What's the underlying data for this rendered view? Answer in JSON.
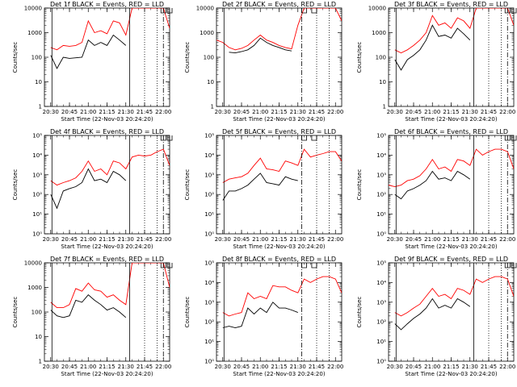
{
  "chart_data": [
    {
      "type": "line",
      "title": "Det 1f BLACK = Events, RED = LLD",
      "xlabel": "Start Time (22-Nov-03 20:24:20)",
      "ylabel": "Counts/sec",
      "yscale": "log",
      "ylim": [
        1,
        10000
      ],
      "xlim": [
        "20:25",
        "22:05"
      ],
      "ytick_labels": [
        "1",
        "10",
        "100",
        "1000",
        "10000"
      ],
      "xtick_labels": [
        "20:30",
        "20:45",
        "21:00",
        "21:15",
        "21:30",
        "21:45",
        "22:00"
      ],
      "x": [
        "20:25",
        "20:30",
        "20:35",
        "20:40",
        "20:45",
        "20:50",
        "20:55",
        "21:00",
        "21:05",
        "21:10",
        "21:15",
        "21:20",
        "21:25",
        "21:30",
        "21:35",
        "21:40",
        "21:45",
        "21:50",
        "21:55",
        "22:00",
        "22:05"
      ],
      "series": [
        {
          "name": "",
          "color": "#000000",
          "values": [
            null,
            120,
            35,
            100,
            90,
            95,
            100,
            500,
            300,
            400,
            300,
            800,
            500,
            300,
            null,
            null,
            null,
            null,
            null,
            null,
            null
          ]
        },
        {
          "name": "",
          "color": "#ff0000",
          "values": [
            null,
            250,
            200,
            300,
            280,
            300,
            400,
            3000,
            1000,
            1200,
            900,
            3000,
            2500,
            800,
            10000,
            10000,
            10000,
            10000,
            10000,
            10000,
            1500
          ]
        }
      ],
      "markers": {
        "solid": [
          "20:31",
          "21:33"
        ],
        "dotted": [
          "21:45",
          "21:55"
        ],
        "dashed": [
          "22:00"
        ],
        "flags": [
          "22:00",
          "22:05"
        ]
      }
    },
    {
      "type": "line",
      "title": "Det 2f BLACK = Events, RED = LLD",
      "xlabel": "Start Time (22-Nov-03 20:24:20)",
      "ylabel": "Counts/sec",
      "yscale": "log",
      "ylim": [
        1,
        10000
      ],
      "xlim": [
        "20:25",
        "22:05"
      ],
      "ytick_labels": [
        "1",
        "10",
        "100",
        "1000",
        "10000"
      ],
      "xtick_labels": [
        "20:30",
        "20:45",
        "21:00",
        "21:15",
        "21:30",
        "21:45",
        "22:00"
      ],
      "x": [
        "20:25",
        "20:30",
        "20:35",
        "20:40",
        "20:45",
        "20:50",
        "20:55",
        "21:00",
        "21:05",
        "21:10",
        "21:15",
        "21:20",
        "21:25",
        "21:30",
        "21:35",
        "21:40",
        "21:45",
        "21:50",
        "21:55",
        "22:00",
        "22:05"
      ],
      "series": [
        {
          "name": "",
          "color": "#000000",
          "values": [
            null,
            null,
            160,
            150,
            170,
            200,
            300,
            600,
            400,
            300,
            250,
            200,
            180,
            null,
            null,
            null,
            null,
            null,
            null,
            null,
            null
          ]
        },
        {
          "name": "",
          "color": "#ff0000",
          "values": [
            500,
            400,
            250,
            200,
            230,
            300,
            500,
            800,
            500,
            400,
            300,
            250,
            220,
            2000,
            10000,
            10000,
            10000,
            10000,
            10000,
            10000,
            3000
          ]
        }
      ],
      "markers": {
        "solid": [
          "20:31"
        ],
        "dotted": [
          "21:45",
          "21:55"
        ],
        "dashed": [
          "21:33"
        ],
        "flags": [
          "21:35",
          "21:43"
        ]
      }
    },
    {
      "type": "line",
      "title": "Det 3f BLACK = Events, RED = LLD",
      "xlabel": "Start Time (22-Nov-03 20:24:20)",
      "ylabel": "Counts/sec",
      "yscale": "log",
      "ylim": [
        1,
        10000
      ],
      "xlim": [
        "20:25",
        "22:05"
      ],
      "ytick_labels": [
        "1",
        "10",
        "100",
        "1000",
        "10000"
      ],
      "xtick_labels": [
        "20:30",
        "20:45",
        "21:00",
        "21:15",
        "21:30",
        "21:45",
        "22:00"
      ],
      "x": [
        "20:25",
        "20:30",
        "20:35",
        "20:40",
        "20:45",
        "20:50",
        "20:55",
        "21:00",
        "21:05",
        "21:10",
        "21:15",
        "21:20",
        "21:25",
        "21:30",
        "21:35",
        "21:40",
        "21:45",
        "21:50",
        "21:55",
        "22:00",
        "22:05"
      ],
      "series": [
        {
          "name": "",
          "color": "#000000",
          "values": [
            null,
            80,
            30,
            80,
            120,
            200,
            500,
            2000,
            700,
            800,
            600,
            1500,
            900,
            500,
            null,
            null,
            null,
            null,
            null,
            null,
            null
          ]
        },
        {
          "name": "",
          "color": "#ff0000",
          "values": [
            null,
            200,
            150,
            200,
            300,
            500,
            1000,
            5000,
            2000,
            2500,
            1500,
            4000,
            3000,
            1500,
            10000,
            10000,
            10000,
            10000,
            10000,
            10000,
            2000
          ]
        }
      ],
      "markers": {
        "solid": [
          "20:31",
          "21:33"
        ],
        "dotted": [
          "21:45",
          "21:55"
        ],
        "dashed": [
          "22:00"
        ],
        "flags": [
          "22:00",
          "22:05"
        ]
      }
    },
    {
      "type": "line",
      "title": "Det 4f BLACK = Events, RED = LLD",
      "xlabel": "Start Time (22-Nov-03 20:24:20)",
      "ylabel": "Counts/sec",
      "yscale": "log",
      "ylim": [
        1,
        100000
      ],
      "xlim": [
        "20:25",
        "22:05"
      ],
      "ytick_labels": [
        "10⁰",
        "10¹",
        "10²",
        "10³",
        "10⁴",
        "10⁵"
      ],
      "xtick_labels": [
        "20:30",
        "20:45",
        "21:00",
        "21:15",
        "21:30",
        "21:45",
        "22:00"
      ],
      "x": [
        "20:25",
        "20:30",
        "20:35",
        "20:40",
        "20:45",
        "20:50",
        "20:55",
        "21:00",
        "21:05",
        "21:10",
        "21:15",
        "21:20",
        "21:25",
        "21:30",
        "21:35",
        "21:40",
        "21:45",
        "21:50",
        "21:55",
        "22:00",
        "22:05"
      ],
      "series": [
        {
          "name": "",
          "color": "#000000",
          "values": [
            null,
            100,
            20,
            150,
            200,
            250,
            400,
            2000,
            500,
            600,
            400,
            1500,
            1000,
            500,
            null,
            null,
            null,
            null,
            null,
            null,
            null
          ]
        },
        {
          "name": "",
          "color": "#ff0000",
          "values": [
            null,
            500,
            300,
            400,
            500,
            700,
            1500,
            5000,
            1500,
            2000,
            1000,
            5000,
            4000,
            2000,
            8000,
            10000,
            9000,
            10000,
            15000,
            20000,
            3000
          ]
        }
      ],
      "markers": {
        "solid": [
          "20:31",
          "21:33"
        ],
        "dotted": [
          "21:45",
          "21:55"
        ],
        "dashed": [
          "22:00"
        ],
        "flags": [
          "22:00",
          "22:05"
        ]
      }
    },
    {
      "type": "line",
      "title": "Det 5f BLACK = Events, RED = LLD",
      "xlabel": "Start Time (22-Nov-03 20:24:20)",
      "ylabel": "Counts/sec",
      "yscale": "log",
      "ylim": [
        1,
        100000
      ],
      "xlim": [
        "20:25",
        "22:05"
      ],
      "ytick_labels": [
        "10⁰",
        "10¹",
        "10²",
        "10³",
        "10⁴",
        "10⁵"
      ],
      "xtick_labels": [
        "20:30",
        "20:45",
        "21:00",
        "21:15",
        "21:30",
        "21:45",
        "22:00"
      ],
      "x": [
        "20:25",
        "20:30",
        "20:35",
        "20:40",
        "20:45",
        "20:50",
        "20:55",
        "21:00",
        "21:05",
        "21:10",
        "21:15",
        "21:20",
        "21:25",
        "21:30",
        "21:35",
        "21:40",
        "21:45",
        "21:50",
        "21:55",
        "22:00",
        "22:05"
      ],
      "series": [
        {
          "name": "",
          "color": "#000000",
          "values": [
            null,
            50,
            150,
            150,
            200,
            300,
            600,
            1200,
            400,
            350,
            300,
            800,
            600,
            500,
            null,
            null,
            null,
            null,
            null,
            null,
            null
          ]
        },
        {
          "name": "",
          "color": "#ff0000",
          "values": [
            null,
            400,
            600,
            700,
            800,
            1200,
            3000,
            7000,
            2000,
            1800,
            1500,
            5000,
            4000,
            3000,
            20000,
            8000,
            10000,
            12000,
            15000,
            15000,
            5000
          ]
        }
      ],
      "markers": {
        "solid": [
          "20:31"
        ],
        "dotted": [
          "21:45",
          "21:55"
        ],
        "dashed": [
          "21:33"
        ],
        "flags": [
          "21:35",
          "21:43"
        ]
      }
    },
    {
      "type": "line",
      "title": "Det 6f BLACK = Events, RED = LLD",
      "xlabel": "Start Time (22-Nov-03 20:24:20)",
      "ylabel": "Counts/sec",
      "yscale": "log",
      "ylim": [
        1,
        100000
      ],
      "xlim": [
        "20:25",
        "22:05"
      ],
      "ytick_labels": [
        "10⁰",
        "10¹",
        "10²",
        "10³",
        "10⁴",
        "10⁵"
      ],
      "xtick_labels": [
        "20:30",
        "20:45",
        "21:00",
        "21:15",
        "21:30",
        "21:45",
        "22:00"
      ],
      "x": [
        "20:25",
        "20:30",
        "20:35",
        "20:40",
        "20:45",
        "20:50",
        "20:55",
        "21:00",
        "21:05",
        "21:10",
        "21:15",
        "21:20",
        "21:25",
        "21:30",
        "21:35",
        "21:40",
        "21:45",
        "21:50",
        "21:55",
        "22:00",
        "22:05"
      ],
      "series": [
        {
          "name": "",
          "color": "#000000",
          "values": [
            null,
            100,
            60,
            150,
            200,
            300,
            500,
            1500,
            600,
            700,
            500,
            1500,
            1000,
            600,
            null,
            null,
            null,
            null,
            null,
            null,
            null
          ]
        },
        {
          "name": "",
          "color": "#ff0000",
          "values": [
            300,
            250,
            300,
            500,
            600,
            900,
            2000,
            6000,
            2000,
            2500,
            1500,
            6000,
            5000,
            3000,
            20000,
            10000,
            15000,
            20000,
            20000,
            15000,
            2000
          ]
        }
      ],
      "markers": {
        "solid": [
          "20:31",
          "21:33"
        ],
        "dotted": [
          "21:45",
          "21:55"
        ],
        "dashed": [
          "22:00"
        ],
        "flags": [
          "22:00",
          "22:05"
        ]
      }
    },
    {
      "type": "line",
      "title": "Det 7f BLACK = Events, RED = LLD",
      "xlabel": "Start Time (22-Nov-03 20:24:20)",
      "ylabel": "Counts/sec",
      "yscale": "log",
      "ylim": [
        1,
        10000
      ],
      "xlim": [
        "20:25",
        "22:05"
      ],
      "ytick_labels": [
        "1",
        "10",
        "100",
        "1000",
        "10000"
      ],
      "xtick_labels": [
        "20:30",
        "20:45",
        "21:00",
        "21:15",
        "21:30",
        "21:45",
        "22:00"
      ],
      "x": [
        "20:25",
        "20:30",
        "20:35",
        "20:40",
        "20:45",
        "20:50",
        "20:55",
        "21:00",
        "21:05",
        "21:10",
        "21:15",
        "21:20",
        "21:25",
        "21:30",
        "21:35",
        "21:40",
        "21:45",
        "21:50",
        "21:55",
        "22:00",
        "22:05"
      ],
      "series": [
        {
          "name": "",
          "color": "#000000",
          "values": [
            null,
            120,
            70,
            60,
            70,
            300,
            250,
            500,
            300,
            200,
            120,
            150,
            100,
            60,
            null,
            null,
            null,
            null,
            null,
            null,
            null
          ]
        },
        {
          "name": "",
          "color": "#ff0000",
          "values": [
            null,
            250,
            150,
            150,
            200,
            900,
            700,
            1500,
            800,
            700,
            400,
            500,
            300,
            200,
            10000,
            10000,
            10000,
            10000,
            10000,
            10000,
            1000
          ]
        }
      ],
      "markers": {
        "solid": [
          "20:31",
          "21:33"
        ],
        "dotted": [
          "21:45",
          "21:55"
        ],
        "dashed": [
          "22:00"
        ],
        "flags": [
          "22:00",
          "22:05"
        ]
      }
    },
    {
      "type": "line",
      "title": "Det 8f BLACK = Events, RED = LLD",
      "xlabel": "Start Time (22-Nov-03 20:24:20)",
      "ylabel": "Counts/sec",
      "yscale": "log",
      "ylim": [
        1,
        100000
      ],
      "xlim": [
        "20:25",
        "22:05"
      ],
      "ytick_labels": [
        "10⁰",
        "10¹",
        "10²",
        "10³",
        "10⁴",
        "10⁵"
      ],
      "xtick_labels": [
        "20:30",
        "20:45",
        "21:00",
        "21:15",
        "21:30",
        "21:45",
        "22:00"
      ],
      "x": [
        "20:25",
        "20:30",
        "20:35",
        "20:40",
        "20:45",
        "20:50",
        "20:55",
        "21:00",
        "21:05",
        "21:10",
        "21:15",
        "21:20",
        "21:25",
        "21:30",
        "21:35",
        "21:40",
        "21:45",
        "21:50",
        "21:55",
        "22:00",
        "22:05"
      ],
      "series": [
        {
          "name": "",
          "color": "#000000",
          "values": [
            null,
            50,
            60,
            50,
            60,
            500,
            250,
            500,
            300,
            1000,
            500,
            500,
            400,
            300,
            null,
            null,
            null,
            null,
            null,
            null,
            null
          ]
        },
        {
          "name": "",
          "color": "#ff0000",
          "values": [
            null,
            300,
            200,
            250,
            300,
            3000,
            1500,
            2000,
            1500,
            7000,
            6000,
            6000,
            4000,
            3000,
            15000,
            10000,
            15000,
            20000,
            20000,
            15000,
            3000
          ]
        }
      ],
      "markers": {
        "solid": [
          "20:31"
        ],
        "dotted": [
          "21:45",
          "21:55"
        ],
        "dashed": [
          "21:33"
        ],
        "flags": [
          "21:35",
          "21:43"
        ]
      }
    },
    {
      "type": "line",
      "title": "Det 9f BLACK = Events, RED = LLD",
      "xlabel": "Start Time (22-Nov-03 20:24:20)",
      "ylabel": "Counts/sec",
      "yscale": "log",
      "ylim": [
        1,
        100000
      ],
      "xlim": [
        "20:25",
        "22:05"
      ],
      "ytick_labels": [
        "10⁰",
        "10¹",
        "10²",
        "10³",
        "10⁴",
        "10⁵"
      ],
      "xtick_labels": [
        "20:30",
        "20:45",
        "21:00",
        "21:15",
        "21:30",
        "21:45",
        "22:00"
      ],
      "x": [
        "20:25",
        "20:30",
        "20:35",
        "20:40",
        "20:45",
        "20:50",
        "20:55",
        "21:00",
        "21:05",
        "21:10",
        "21:15",
        "21:20",
        "21:25",
        "21:30",
        "21:35",
        "21:40",
        "21:45",
        "21:50",
        "21:55",
        "22:00",
        "22:05"
      ],
      "series": [
        {
          "name": "",
          "color": "#000000",
          "values": [
            null,
            80,
            40,
            80,
            150,
            250,
            500,
            1500,
            500,
            700,
            500,
            1500,
            1000,
            600,
            null,
            null,
            null,
            null,
            null,
            null,
            null
          ]
        },
        {
          "name": "",
          "color": "#ff0000",
          "values": [
            null,
            300,
            200,
            300,
            500,
            800,
            2000,
            5000,
            2000,
            2500,
            1500,
            5000,
            4000,
            2500,
            15000,
            10000,
            15000,
            20000,
            20000,
            15000,
            2000
          ]
        }
      ],
      "markers": {
        "solid": [
          "20:31",
          "21:33"
        ],
        "dotted": [
          "21:45",
          "21:55"
        ],
        "dashed": [
          "22:00"
        ],
        "flags": [
          "22:00",
          "22:05"
        ]
      }
    }
  ]
}
